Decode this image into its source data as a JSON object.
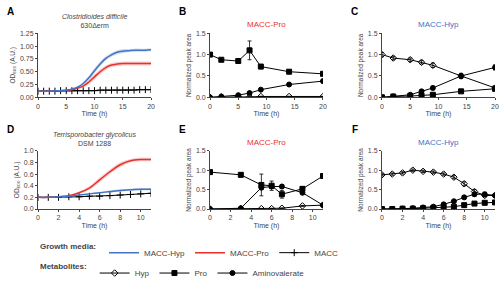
{
  "chart_data": [
    {
      "type": "line",
      "panel": "A",
      "title": "Clostridioides difficile",
      "subtitle": "630Δerm",
      "xlabel": "Time (h)",
      "ylabel": "OD₆₀₀ (A.U.)",
      "xlim": [
        0,
        20
      ],
      "ylim": [
        0,
        1.25
      ],
      "xticks": [
        0,
        5,
        10,
        15,
        20
      ],
      "yticks": [
        {
          "value": 0,
          "label": "0.00"
        },
        0.25,
        {
          "value": 0.5,
          "label": "0.50"
        },
        0.75,
        {
          "value": 1,
          "label": "1.00"
        },
        1.25
      ],
      "grid": false,
      "legend_title": "Growth media:",
      "x": [
        0,
        1,
        2,
        3,
        4,
        5,
        6,
        7,
        8,
        9,
        10,
        11,
        12,
        13,
        14,
        15,
        16,
        17,
        18,
        19,
        20
      ],
      "series": [
        {
          "name": "MACC",
          "type": "line",
          "color": "#000000",
          "marker": "cross",
          "values": [
            0.12,
            0.12,
            0.12,
            0.12,
            0.13,
            0.13,
            0.13,
            0.13,
            0.13,
            0.13,
            0.13,
            0.14,
            0.14,
            0.14,
            0.14,
            0.14,
            0.14,
            0.14,
            0.15,
            0.15,
            0.15
          ]
        },
        {
          "name": "MACC-Pro",
          "type": "band",
          "color": "#e8312a",
          "line_style": "smooth",
          "values": [
            0.12,
            0.12,
            0.12,
            0.13,
            0.13,
            0.14,
            0.15,
            0.18,
            0.22,
            0.3,
            0.4,
            0.5,
            0.58,
            0.63,
            0.65,
            0.66,
            0.66,
            0.66,
            0.66,
            0.66,
            0.66
          ],
          "error": [
            0.01,
            0.01,
            0.01,
            0.01,
            0.01,
            0.01,
            0.01,
            0.02,
            0.03,
            0.04,
            0.05,
            0.05,
            0.04,
            0.04,
            0.04,
            0.04,
            0.04,
            0.04,
            0.04,
            0.04,
            0.04
          ]
        },
        {
          "name": "MACC-Hyp",
          "type": "band",
          "color": "#4472c4",
          "line_style": "smooth",
          "values": [
            0.12,
            0.12,
            0.12,
            0.13,
            0.13,
            0.14,
            0.16,
            0.2,
            0.27,
            0.38,
            0.52,
            0.65,
            0.76,
            0.83,
            0.88,
            0.9,
            0.91,
            0.92,
            0.92,
            0.92,
            0.93
          ],
          "error": [
            0.01,
            0.01,
            0.01,
            0.01,
            0.01,
            0.01,
            0.02,
            0.02,
            0.03,
            0.04,
            0.05,
            0.05,
            0.04,
            0.04,
            0.04,
            0.04,
            0.03,
            0.03,
            0.03,
            0.03,
            0.03
          ]
        }
      ]
    },
    {
      "type": "line",
      "panel": "B",
      "title": "MACC-Pro",
      "color": "#e8312a",
      "xlabel": "Time (h)",
      "ylabel": "Normalized peak area",
      "xlim": [
        0,
        20
      ],
      "ylim": [
        0,
        1.5
      ],
      "xticks": [
        0,
        5,
        10,
        15,
        20
      ],
      "yticks": [
        {
          "value": 0,
          "label": "0.0"
        },
        0.5,
        {
          "value": 1,
          "label": "1.0"
        },
        1.5
      ],
      "grid": false,
      "legend_title": "Metabolites:",
      "x": [
        0,
        2,
        5,
        7,
        9,
        14,
        20
      ],
      "series": [
        {
          "name": "Hyp",
          "type": "line",
          "color": "#000000",
          "marker": "diamond-open",
          "values": [
            0.0,
            0.01,
            0.01,
            0.01,
            0.02,
            0.02,
            0.02
          ],
          "error": [
            0.0,
            0.005,
            0.005,
            0.005,
            0.005,
            0.005,
            0.005
          ]
        },
        {
          "name": "Pro",
          "type": "line",
          "color": "#000000",
          "marker": "square",
          "values": [
            1.0,
            0.88,
            0.85,
            1.1,
            0.72,
            0.6,
            0.55
          ],
          "error": [
            0.02,
            0.03,
            0.03,
            0.22,
            0.05,
            0.04,
            0.03
          ]
        },
        {
          "name": "Aminovalerate",
          "type": "line",
          "color": "#000000",
          "marker": "circle",
          "values": [
            0.0,
            0.02,
            0.05,
            0.1,
            0.18,
            0.3,
            0.38
          ],
          "error": [
            0.0,
            0.01,
            0.01,
            0.02,
            0.03,
            0.03,
            0.04
          ]
        }
      ]
    },
    {
      "type": "line",
      "panel": "C",
      "title": "MACC-Hyp",
      "color": "#4472c4",
      "xlabel": "Time (h)",
      "ylabel": "Normalized peak area",
      "xlim": [
        0,
        20
      ],
      "ylim": [
        0,
        1.5
      ],
      "xticks": [
        0,
        5,
        10,
        15,
        20
      ],
      "yticks": [
        {
          "value": 0,
          "label": "0.0"
        },
        0.5,
        {
          "value": 1,
          "label": "1.0"
        },
        1.5
      ],
      "grid": false,
      "x": [
        0,
        2,
        5,
        7,
        9,
        14,
        20
      ],
      "series": [
        {
          "name": "Hyp",
          "type": "line",
          "color": "#000000",
          "marker": "diamond-open",
          "values": [
            1.0,
            0.92,
            0.88,
            0.82,
            0.75,
            0.5,
            0.22
          ],
          "error": [
            0.05,
            0.04,
            0.04,
            0.04,
            0.05,
            0.06,
            0.05
          ]
        },
        {
          "name": "Pro",
          "type": "line",
          "color": "#000000",
          "marker": "square",
          "values": [
            0.0,
            0.02,
            0.03,
            0.04,
            0.06,
            0.14,
            0.2
          ],
          "error": [
            0.0,
            0.01,
            0.01,
            0.01,
            0.01,
            0.02,
            0.03
          ]
        },
        {
          "name": "Aminovalerate",
          "type": "line",
          "color": "#000000",
          "marker": "circle",
          "values": [
            0.0,
            0.02,
            0.06,
            0.14,
            0.22,
            0.5,
            0.7
          ],
          "error": [
            0.0,
            0.01,
            0.02,
            0.03,
            0.04,
            0.05,
            0.06
          ]
        }
      ]
    },
    {
      "type": "line",
      "panel": "D",
      "title": "Terrisporobacter glycolicus",
      "subtitle": "DSM 1288",
      "xlabel": "Time (h)",
      "ylabel": "OD₆₀₀ (A.U.)",
      "xlim": [
        0,
        11
      ],
      "ylim": [
        0,
        1.0
      ],
      "xticks": [
        0,
        2,
        4,
        6,
        8,
        10
      ],
      "yticks": [
        {
          "value": 0,
          "label": "0.0"
        },
        0.2,
        0.4,
        0.6,
        0.8,
        {
          "value": 1,
          "label": "1.0"
        }
      ],
      "grid": false,
      "x": [
        0,
        1,
        2,
        3,
        4,
        5,
        6,
        7,
        8,
        9,
        10,
        11
      ],
      "series": [
        {
          "name": "MACC",
          "type": "line",
          "color": "#000000",
          "marker": "cross",
          "values": [
            0.2,
            0.2,
            0.2,
            0.21,
            0.21,
            0.22,
            0.22,
            0.23,
            0.24,
            0.25,
            0.26,
            0.27
          ]
        },
        {
          "name": "MACC-Pro",
          "type": "band",
          "color": "#e8312a",
          "line_style": "smooth",
          "values": [
            0.2,
            0.2,
            0.21,
            0.23,
            0.28,
            0.36,
            0.5,
            0.64,
            0.76,
            0.83,
            0.85,
            0.85
          ],
          "error": [
            0.01,
            0.01,
            0.01,
            0.01,
            0.02,
            0.03,
            0.04,
            0.04,
            0.04,
            0.03,
            0.03,
            0.03
          ]
        },
        {
          "name": "MACC-Hyp",
          "type": "band",
          "color": "#4472c4",
          "line_style": "smooth",
          "values": [
            0.2,
            0.2,
            0.21,
            0.22,
            0.24,
            0.26,
            0.28,
            0.3,
            0.32,
            0.33,
            0.34,
            0.34
          ],
          "error": [
            0.01,
            0.01,
            0.01,
            0.01,
            0.01,
            0.01,
            0.01,
            0.02,
            0.02,
            0.02,
            0.02,
            0.02
          ]
        }
      ]
    },
    {
      "type": "line",
      "panel": "E",
      "title": "MACC-Pro",
      "color": "#e8312a",
      "xlabel": "Time (h)",
      "ylabel": "Normalized peak area",
      "xlim": [
        0,
        11
      ],
      "ylim": [
        0,
        1.5
      ],
      "xticks": [
        0,
        2,
        4,
        6,
        8,
        10
      ],
      "yticks": [
        {
          "value": 0,
          "label": "0.0"
        },
        0.5,
        {
          "value": 1,
          "label": "1.0"
        },
        1.5
      ],
      "grid": false,
      "x": [
        0,
        3,
        5,
        6,
        7,
        9,
        11
      ],
      "series": [
        {
          "name": "Hyp",
          "type": "line",
          "color": "#000000",
          "marker": "diamond-open",
          "values": [
            0.0,
            0.01,
            0.01,
            0.01,
            0.02,
            0.08,
            0.1
          ],
          "error": [
            0.0,
            0.005,
            0.005,
            0.005,
            0.005,
            0.01,
            0.01
          ]
        },
        {
          "name": "Pro",
          "type": "line",
          "color": "#000000",
          "marker": "square",
          "values": [
            0.95,
            0.88,
            0.62,
            0.6,
            0.38,
            0.52,
            0.85
          ],
          "error": [
            0.03,
            0.05,
            0.28,
            0.12,
            0.1,
            0.05,
            0.04
          ]
        },
        {
          "name": "Aminovalerate",
          "type": "line",
          "color": "#000000",
          "marker": "circle",
          "values": [
            0.0,
            0.02,
            0.55,
            0.58,
            0.58,
            0.42,
            0.1
          ],
          "error": [
            0.0,
            0.01,
            0.05,
            0.05,
            0.05,
            0.05,
            0.02
          ]
        }
      ]
    },
    {
      "type": "line",
      "panel": "F",
      "title": "MACC-Hyp",
      "color": "#4472c4",
      "xlabel": "Time (h)",
      "ylabel": "Normalized peak area",
      "xlim": [
        0,
        11
      ],
      "ylim": [
        0,
        1.5
      ],
      "xticks": [
        0,
        2,
        4,
        6,
        8,
        10
      ],
      "yticks": [
        {
          "value": 0,
          "label": "0.0"
        },
        0.5,
        {
          "value": 1,
          "label": "1.0"
        },
        1.5
      ],
      "grid": false,
      "x": [
        0,
        1,
        2,
        3,
        4,
        5,
        6,
        7,
        8,
        9,
        10,
        11
      ],
      "series": [
        {
          "name": "Hyp",
          "type": "line",
          "color": "#000000",
          "marker": "diamond-open",
          "values": [
            0.88,
            0.9,
            0.93,
            1.0,
            0.97,
            0.95,
            0.9,
            0.82,
            0.65,
            0.45,
            0.35,
            0.35
          ],
          "error": [
            0.03,
            0.03,
            0.03,
            0.03,
            0.03,
            0.03,
            0.03,
            0.04,
            0.05,
            0.05,
            0.04,
            0.04
          ]
        },
        {
          "name": "Pro",
          "type": "line",
          "color": "#000000",
          "marker": "square",
          "values": [
            0.0,
            0.0,
            0.01,
            0.01,
            0.02,
            0.03,
            0.04,
            0.06,
            0.1,
            0.14,
            0.16,
            0.17
          ],
          "error": [
            0.0,
            0.0,
            0.005,
            0.005,
            0.005,
            0.01,
            0.01,
            0.01,
            0.02,
            0.03,
            0.03,
            0.03
          ]
        },
        {
          "name": "Aminovalerate",
          "type": "line",
          "color": "#000000",
          "marker": "circle",
          "values": [
            0.0,
            0.0,
            0.01,
            0.02,
            0.04,
            0.06,
            0.12,
            0.2,
            0.3,
            0.38,
            0.38,
            0.35
          ],
          "error": [
            0.0,
            0.0,
            0.005,
            0.005,
            0.01,
            0.01,
            0.02,
            0.03,
            0.04,
            0.05,
            0.05,
            0.05
          ]
        }
      ]
    }
  ]
}
